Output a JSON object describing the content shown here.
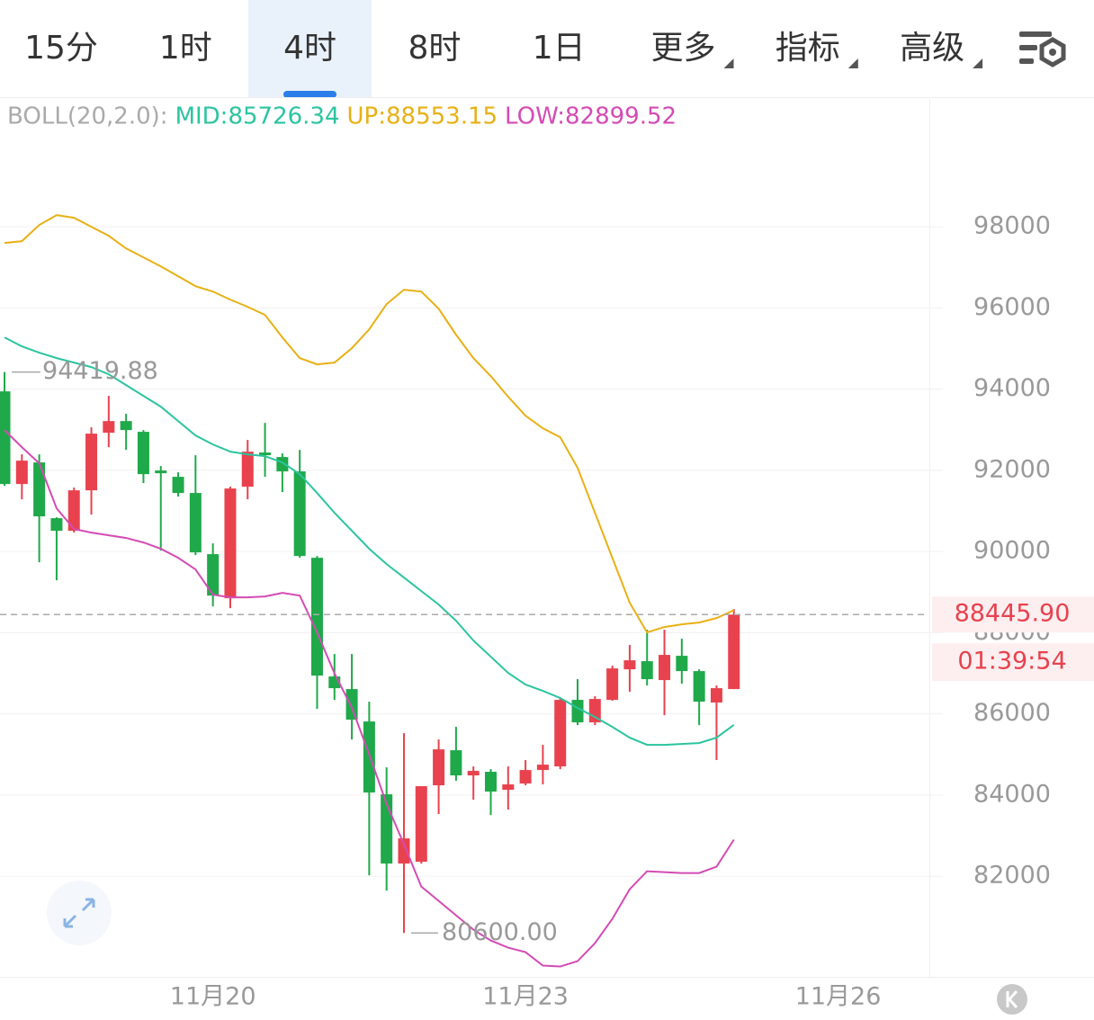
{
  "tabs": [
    "15分",
    "1时",
    "4时",
    "8时",
    "1日",
    "更多",
    "指标",
    "高级"
  ],
  "active_tab": 2,
  "chart_data": {
    "type": "candlestick",
    "indicator_legend": [
      "BOLL(20,2.0):",
      "MID:85726.34",
      "UP:88553.15",
      "LOW:82899.52"
    ],
    "up_color": "#e8424e",
    "down_color": "#1fa94a",
    "x": [
      0,
      1,
      2,
      3,
      4,
      5,
      6,
      7,
      8,
      9,
      10,
      11,
      12,
      13,
      14,
      15,
      16,
      17,
      18,
      19,
      20,
      21,
      22,
      23,
      24,
      25,
      26,
      27,
      28,
      29,
      30,
      31,
      32,
      33,
      34,
      35,
      36,
      37,
      38,
      39,
      40,
      41,
      42
    ],
    "open": [
      93945,
      91662,
      92194,
      90820,
      90510,
      91507,
      92925,
      93213,
      92948,
      91995,
      91840,
      91441,
      89934,
      88848,
      91596,
      92438,
      92327,
      91973,
      89845,
      86920,
      86610,
      85812,
      84017,
      82311,
      82355,
      84239,
      85103,
      84483,
      84572,
      84128,
      84283,
      84616,
      84704,
      86344,
      85790,
      86344,
      87097,
      87297,
      86832,
      87430,
      87053,
      86278,
      86610
    ],
    "high": [
      94419.88,
      92394,
      92394,
      90842,
      91574,
      93058,
      93834,
      93391,
      92992,
      92106,
      91950,
      92372,
      90200,
      91596,
      92748,
      93169,
      92416,
      92504,
      89889,
      87474,
      87474,
      86300,
      84682,
      85524,
      84217,
      85369,
      85679,
      84704,
      84638,
      84704,
      84860,
      85236,
      86388,
      86854,
      86433,
      87186,
      87696,
      88072,
      88072,
      87851,
      87097,
      86698,
      88582
    ],
    "low": [
      91618,
      91286,
      89734,
      89291,
      90466,
      90909,
      92571,
      92504,
      91685,
      90022,
      91352,
      89912,
      88648,
      88604,
      91286,
      91840,
      91463,
      89845,
      86122,
      86344,
      85369,
      82022,
      81646,
      80600,
      82311,
      83530,
      84350,
      83884,
      83507,
      83640,
      84239,
      84261,
      84638,
      85723,
      85723,
      86322,
      86543,
      86699,
      85967,
      86743,
      85723,
      84860,
      86610
    ],
    "close": [
      91662,
      92238,
      90865,
      90510,
      91507,
      92903,
      93213,
      92992,
      91906,
      91928,
      91441,
      89978,
      88914,
      91552,
      92460,
      92372,
      91973,
      89889,
      86942,
      86632,
      85856,
      84061,
      82311,
      82931,
      84217,
      85125,
      84483,
      84594,
      84084,
      84261,
      84616,
      84748,
      86344,
      85790,
      86366,
      87119,
      87319,
      86854,
      87452,
      87053,
      86300,
      86632,
      88445.9
    ],
    "series": [
      {
        "color": "#2bc4a0",
        "values": [
          95274,
          95053,
          94898,
          94765,
          94654,
          94543,
          94366,
          94100,
          93834,
          93568,
          93213,
          92859,
          92637,
          92460,
          92394,
          92349,
          92194,
          91906,
          91441,
          90953,
          90510,
          90067,
          89690,
          89358,
          89025,
          88693,
          88294,
          87806,
          87408,
          87009,
          86721,
          86566,
          86389,
          86144,
          85922,
          85679,
          85413,
          85236,
          85236,
          85258,
          85280,
          85413,
          85726.34
        ]
      },
      {
        "color": "#e8b014",
        "values": [
          97601,
          97645,
          98044,
          98288,
          98222,
          98000,
          97778,
          97468,
          97247,
          97025,
          96781,
          96537,
          96404,
          96205,
          96028,
          95828,
          95274,
          94765,
          94610,
          94654,
          95008,
          95474,
          96094,
          96449,
          96404,
          95983,
          95341,
          94765,
          94321,
          93812,
          93346,
          93036,
          92815,
          92061,
          90953,
          89845,
          88737,
          88006,
          88139,
          88205,
          88250,
          88360,
          88553.15
        ]
      },
      {
        "color": "#d44bb4",
        "values": [
          92992,
          92571,
          92172,
          91064,
          90554,
          90466,
          90399,
          90333,
          90222,
          90067,
          89845,
          89557,
          88936,
          88870,
          88870,
          88892,
          88981,
          88914,
          88006,
          86997,
          86155,
          84998,
          83783,
          82786,
          81745,
          81390,
          81036,
          80682,
          80416,
          80239,
          80128,
          79796,
          79774,
          79907,
          80349,
          80947,
          81678,
          82122,
          82100,
          82078,
          82078,
          82233,
          82899.52
        ]
      }
    ],
    "xlim": [
      -0.26,
      53.1
    ],
    "xticks": [
      {
        "value": 12,
        "label": "11月20"
      },
      {
        "value": 30,
        "label": "11月23"
      },
      {
        "value": 48,
        "label": "11月26"
      }
    ],
    "ylim": [
      79520,
      101150
    ],
    "yticks": [
      82000,
      84000,
      86000,
      88000,
      90000,
      92000,
      94000,
      96000,
      98000
    ],
    "grid": true,
    "max_marker": {
      "x": 0,
      "value": 94419.88
    },
    "min_marker": {
      "x": 23,
      "value": {
        "value": 80600,
        "label": "80600.00"
      }
    },
    "last_price": {
      "value": 88445.9,
      "label": "88445.90"
    },
    "countdown": "01:39:54"
  }
}
